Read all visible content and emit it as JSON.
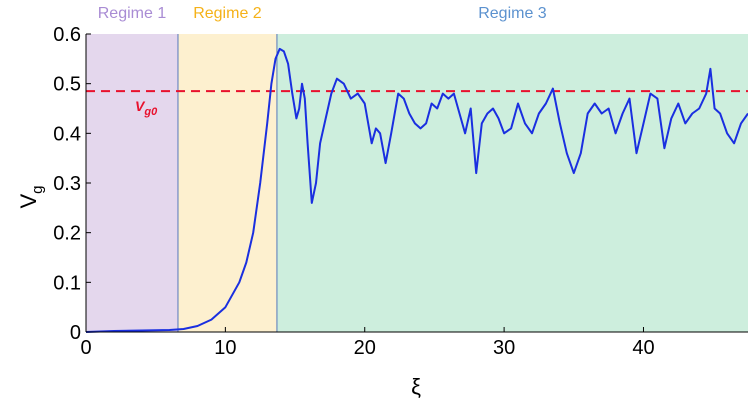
{
  "chart_data": {
    "type": "line",
    "xlabel": "ξ",
    "ylabel_main": "V",
    "ylabel_sub": "g",
    "xlim": [
      0,
      47.5
    ],
    "ylim": [
      0,
      0.6
    ],
    "xticks": [
      0,
      10,
      20,
      30,
      40
    ],
    "xtick_labels": [
      "0",
      "10",
      "20",
      "30",
      "40"
    ],
    "yticks": [
      0,
      0.1,
      0.2,
      0.3,
      0.4,
      0.5,
      0.6
    ],
    "ytick_labels": [
      "0",
      "0.1",
      "0.2",
      "0.3",
      "0.4",
      "0.5",
      "0.6"
    ],
    "grid": false,
    "regions": [
      {
        "label": "Regime 1",
        "x_start": 0,
        "x_end": 6.6,
        "fill": "#e4d7ed",
        "label_color": "#a98cd4"
      },
      {
        "label": "Regime 2",
        "x_start": 6.6,
        "x_end": 13.7,
        "fill": "#fdf0cf",
        "label_color": "#f5b21a"
      },
      {
        "label": "Regime 3",
        "x_start": 13.7,
        "x_end": 47.5,
        "fill": "#cdeedd",
        "label_color": "#5c92cf"
      }
    ],
    "reference_line": {
      "y": 0.485,
      "label_main": "V",
      "label_sub": "g0",
      "color": "#e8112d",
      "style": "dashed"
    },
    "series": [
      {
        "color": "#1a2fe0",
        "points": [
          [
            0,
            0
          ],
          [
            2,
            0.002
          ],
          [
            4,
            0.003
          ],
          [
            6,
            0.004
          ],
          [
            7,
            0.006
          ],
          [
            8,
            0.012
          ],
          [
            9,
            0.025
          ],
          [
            10,
            0.05
          ],
          [
            11,
            0.1
          ],
          [
            11.5,
            0.14
          ],
          [
            12,
            0.2
          ],
          [
            12.5,
            0.3
          ],
          [
            13,
            0.42
          ],
          [
            13.3,
            0.5
          ],
          [
            13.6,
            0.55
          ],
          [
            13.9,
            0.57
          ],
          [
            14.2,
            0.565
          ],
          [
            14.5,
            0.54
          ],
          [
            14.8,
            0.48
          ],
          [
            15.1,
            0.43
          ],
          [
            15.3,
            0.45
          ],
          [
            15.5,
            0.5
          ],
          [
            15.7,
            0.47
          ],
          [
            15.9,
            0.38
          ],
          [
            16.2,
            0.26
          ],
          [
            16.5,
            0.3
          ],
          [
            16.8,
            0.38
          ],
          [
            17.2,
            0.43
          ],
          [
            17.6,
            0.48
          ],
          [
            18,
            0.51
          ],
          [
            18.5,
            0.5
          ],
          [
            19,
            0.47
          ],
          [
            19.5,
            0.48
          ],
          [
            20,
            0.46
          ],
          [
            20.5,
            0.38
          ],
          [
            20.8,
            0.41
          ],
          [
            21.1,
            0.4
          ],
          [
            21.5,
            0.34
          ],
          [
            21.9,
            0.4
          ],
          [
            22.4,
            0.48
          ],
          [
            22.8,
            0.47
          ],
          [
            23.2,
            0.44
          ],
          [
            23.6,
            0.42
          ],
          [
            24,
            0.41
          ],
          [
            24.4,
            0.42
          ],
          [
            24.8,
            0.46
          ],
          [
            25.2,
            0.45
          ],
          [
            25.6,
            0.48
          ],
          [
            26,
            0.47
          ],
          [
            26.4,
            0.48
          ],
          [
            26.8,
            0.44
          ],
          [
            27.2,
            0.4
          ],
          [
            27.6,
            0.45
          ],
          [
            28,
            0.32
          ],
          [
            28.4,
            0.42
          ],
          [
            28.8,
            0.44
          ],
          [
            29.2,
            0.45
          ],
          [
            29.6,
            0.43
          ],
          [
            30,
            0.4
          ],
          [
            30.5,
            0.41
          ],
          [
            31,
            0.46
          ],
          [
            31.5,
            0.42
          ],
          [
            32,
            0.4
          ],
          [
            32.5,
            0.44
          ],
          [
            33,
            0.46
          ],
          [
            33.5,
            0.49
          ],
          [
            34,
            0.42
          ],
          [
            34.5,
            0.36
          ],
          [
            35,
            0.32
          ],
          [
            35.5,
            0.36
          ],
          [
            36,
            0.44
          ],
          [
            36.5,
            0.46
          ],
          [
            37,
            0.44
          ],
          [
            37.5,
            0.45
          ],
          [
            38,
            0.4
          ],
          [
            38.5,
            0.44
          ],
          [
            39,
            0.47
          ],
          [
            39.5,
            0.36
          ],
          [
            40,
            0.42
          ],
          [
            40.5,
            0.48
          ],
          [
            41,
            0.47
          ],
          [
            41.5,
            0.37
          ],
          [
            42,
            0.43
          ],
          [
            42.5,
            0.46
          ],
          [
            43,
            0.42
          ],
          [
            43.5,
            0.44
          ],
          [
            44,
            0.45
          ],
          [
            44.5,
            0.48
          ],
          [
            44.8,
            0.53
          ],
          [
            45.1,
            0.45
          ],
          [
            45.5,
            0.44
          ],
          [
            46,
            0.4
          ],
          [
            46.5,
            0.38
          ],
          [
            47,
            0.42
          ],
          [
            47.5,
            0.44
          ]
        ]
      }
    ]
  }
}
